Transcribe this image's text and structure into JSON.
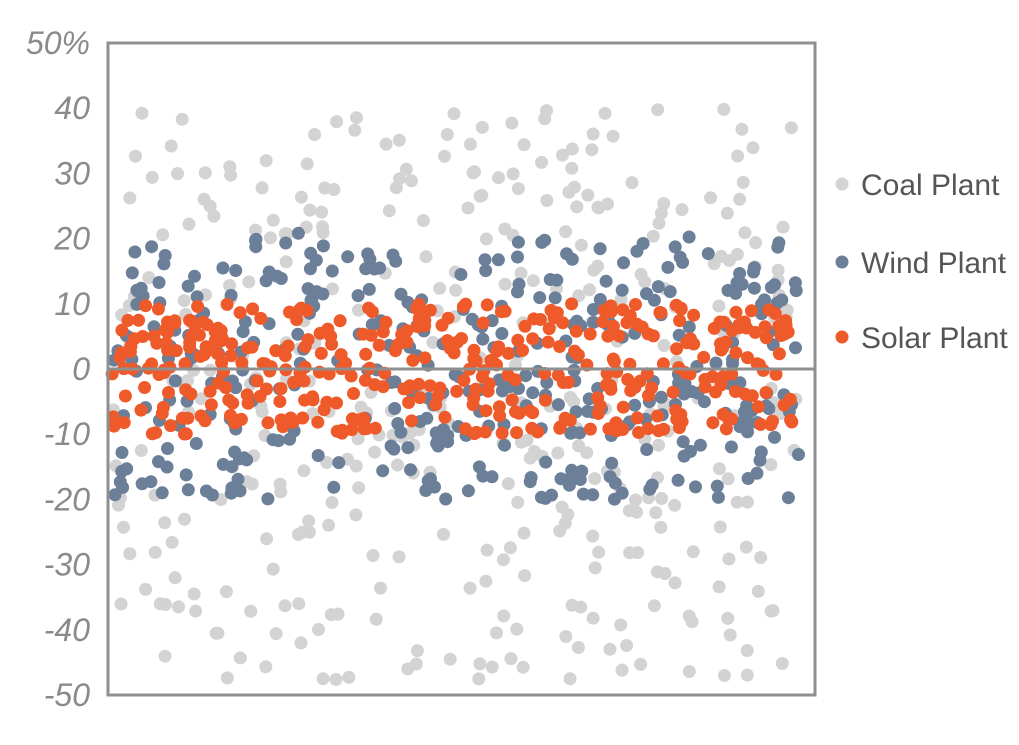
{
  "chart_data": {
    "type": "scatter",
    "title": "",
    "xlabel": "",
    "ylabel": "",
    "ylim": [
      -50,
      50
    ],
    "yticks": [
      -50,
      -40,
      -30,
      -20,
      -10,
      0,
      10,
      20,
      30,
      40,
      50
    ],
    "ytick_labels": [
      "-50",
      "-40",
      "-30",
      "-20",
      "-10",
      "0",
      "10",
      "20",
      "30",
      "40",
      "50%"
    ],
    "grid": false,
    "zero_line": true,
    "legend_position": "right",
    "series": [
      {
        "name": "Coal Plant",
        "color": "#d3d3d3",
        "approx_count": 380,
        "y_range": [
          -48,
          40
        ],
        "distribution": "uniform"
      },
      {
        "name": "Wind Plant",
        "color": "#6b7f99",
        "approx_count": 380,
        "y_range": [
          -20,
          21
        ],
        "distribution": "uniform"
      },
      {
        "name": "Solar Plant",
        "color": "#ef5a2a",
        "approx_count": 400,
        "y_range": [
          -10,
          10
        ],
        "distribution": "uniform"
      }
    ]
  }
}
